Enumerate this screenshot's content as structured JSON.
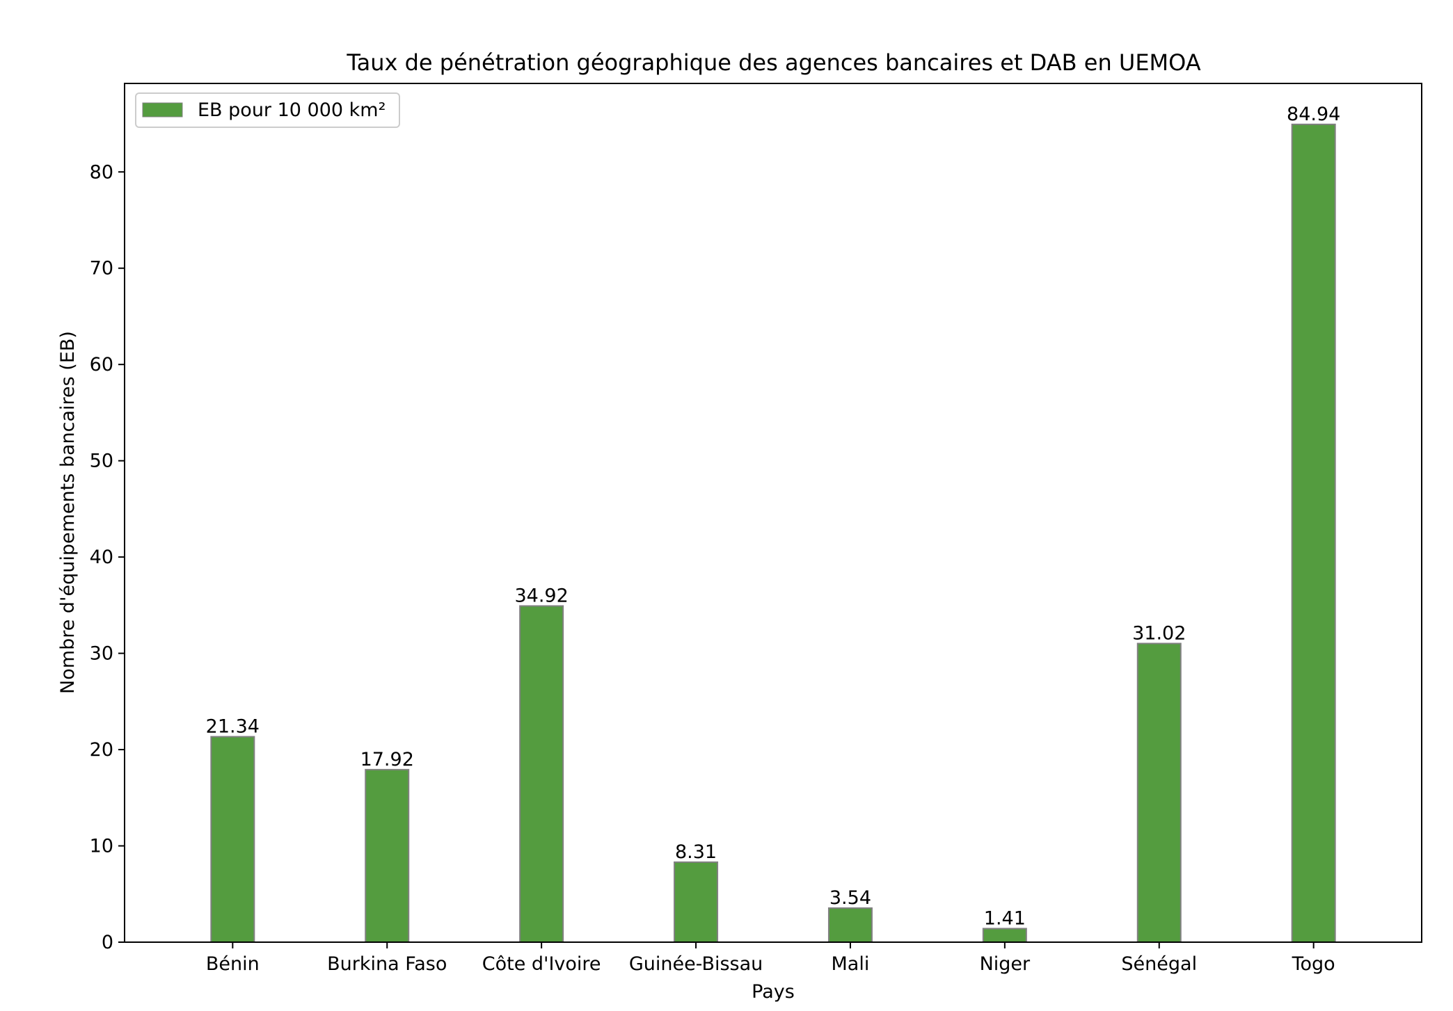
{
  "chart_data": {
    "type": "bar",
    "title": "Taux de pénétration géographique des agences bancaires et DAB en UEMOA",
    "xlabel": "Pays",
    "ylabel": "Nombre d'équipements bancaires (EB)",
    "categories": [
      "Bénin",
      "Burkina Faso",
      "Côte d'Ivoire",
      "Guinée-Bissau",
      "Mali",
      "Niger",
      "Sénégal",
      "Togo"
    ],
    "series": [
      {
        "name": "EB pour 10 000 km²",
        "values": [
          21.34,
          17.92,
          34.92,
          8.31,
          3.54,
          1.41,
          31.02,
          84.94
        ],
        "value_labels": [
          "21.34",
          "17.92",
          "34.92",
          "8.31",
          "3.54",
          "1.41",
          "31.02",
          "84.94"
        ],
        "color": "#549c3f",
        "edge_color": "#808080"
      }
    ],
    "ylim": [
      0,
      89.19
    ],
    "yticks": [
      0,
      10,
      20,
      30,
      40,
      50,
      60,
      70,
      80
    ],
    "ytick_labels": [
      "0",
      "10",
      "20",
      "30",
      "40",
      "50",
      "60",
      "70",
      "80"
    ],
    "grid": false,
    "legend_position": "top-left"
  }
}
